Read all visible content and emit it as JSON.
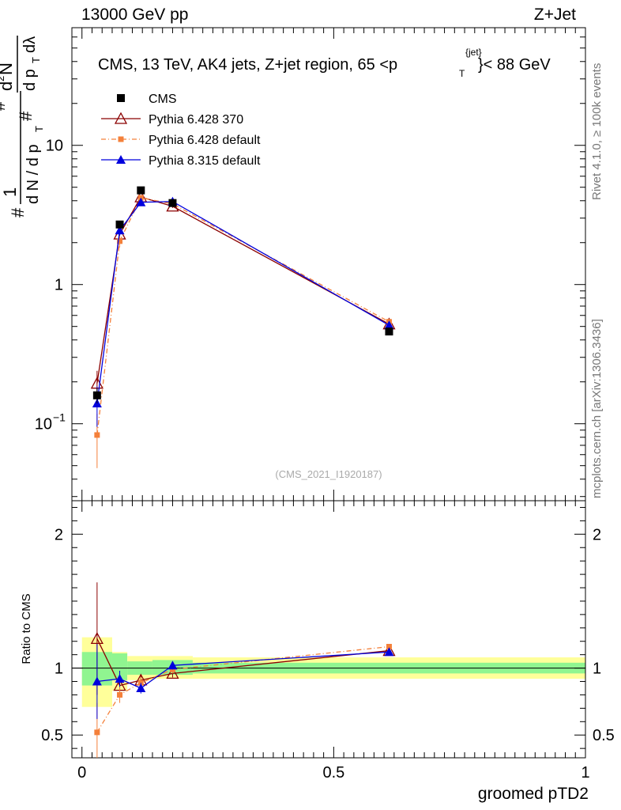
{
  "header": {
    "energy": "13000 GeV pp",
    "process": "Z+Jet",
    "side_label": "Rivet 4.1.0, ≥ 100k events",
    "side_url": "mcplots.cern.ch [arXiv:1306.3436]",
    "analysis_id": "(CMS_2021_I1920187)",
    "xlabel": "groomed pTD2",
    "ratio_ylabel": "Ratio to CMS",
    "title_prefix": "CMS, 13 TeV, AK4 jets, Z+jet region, 65 <p",
    "title_sup": "{jet}",
    "title_sub": "T",
    "title_suffix": "}< 88 GeV",
    "ylabel_top_1": "1",
    "ylabel_top_hash": "#",
    "ylabel_top_dN": "d N / d p",
    "ylabel_top_T": "T",
    "ylabel_top_num": "d",
    "ylabel_top_sup2": "2",
    "ylabel_top_N": "N",
    "ylabel_top_den": "d p",
    "ylabel_top_dlam": "dλ"
  },
  "colors": {
    "cms": "#000000",
    "p6_370": "#8b0000",
    "p6_def": "#f4803a",
    "p8_def": "#0000dd",
    "band_inner": "#90f590",
    "band_outer": "#ffff9a"
  },
  "chart_data": {
    "type": "line",
    "xlim": [
      -0.02,
      1.0
    ],
    "main_ylim_log": [
      0.028,
      70
    ],
    "ratio_ylim": [
      0.33,
      2.25
    ],
    "x_ticks": [
      {
        "value": 0,
        "label": "0"
      },
      {
        "value": 0.5,
        "label": "0.5"
      },
      {
        "value": 1,
        "label": "1"
      }
    ],
    "main_y_ticks": [
      {
        "value": 0.1,
        "label_base": "10",
        "label_exp": "−1"
      },
      {
        "value": 1,
        "label_base": "1",
        "label_exp": ""
      },
      {
        "value": 10,
        "label_base": "10",
        "label_exp": ""
      }
    ],
    "ratio_y_ticks": [
      {
        "value": 0.5,
        "label": "0.5"
      },
      {
        "value": 1,
        "label": "1"
      },
      {
        "value": 2,
        "label": "2"
      }
    ],
    "bins": [
      {
        "x_lo": 0.0,
        "x_hi": 0.06,
        "x": 0.03
      },
      {
        "x_lo": 0.06,
        "x_hi": 0.09,
        "x": 0.075
      },
      {
        "x_lo": 0.09,
        "x_hi": 0.14,
        "x": 0.117
      },
      {
        "x_lo": 0.14,
        "x_hi": 0.22,
        "x": 0.18
      },
      {
        "x_lo": 0.22,
        "x_hi": 1.0,
        "x": 0.61
      }
    ],
    "ratio_band": {
      "inner": [
        [
          0.87,
          1.12
        ],
        [
          0.91,
          1.11
        ],
        [
          0.95,
          1.05
        ],
        [
          0.95,
          1.06
        ],
        [
          0.96,
          1.04
        ]
      ],
      "outer": [
        [
          0.71,
          1.23
        ],
        [
          0.83,
          1.12
        ],
        [
          0.91,
          1.09
        ],
        [
          0.92,
          1.09
        ],
        [
          0.92,
          1.08
        ]
      ]
    },
    "series": [
      {
        "name": "CMS",
        "key": "cms",
        "marker": "square",
        "line": "none",
        "x": [
          0.03,
          0.075,
          0.117,
          0.18,
          0.61
        ],
        "y": [
          0.16,
          2.7,
          4.75,
          3.85,
          0.46
        ],
        "y_err": [
          0.02,
          0.15,
          0.2,
          0.15,
          0.02
        ]
      },
      {
        "name": "Pythia 6.428 370",
        "key": "p6_370",
        "marker": "triangle-open",
        "line": "solid",
        "x": [
          0.03,
          0.075,
          0.117,
          0.18,
          0.61
        ],
        "y": [
          0.195,
          2.3,
          4.25,
          3.65,
          0.52
        ],
        "y_err": [
          0.045,
          0.2,
          0.15,
          0.1,
          0.02
        ],
        "ratio": [
          1.22,
          0.87,
          0.91,
          0.96,
          1.13
        ],
        "ratio_err": [
          0.42,
          0.07,
          0.04,
          0.03,
          0.02
        ]
      },
      {
        "name": "Pythia 6.428 default",
        "key": "p6_def",
        "marker": "square-small",
        "line": "dashdot",
        "x": [
          0.03,
          0.075,
          0.117,
          0.18,
          0.61
        ],
        "y": [
          0.083,
          2.05,
          4.2,
          3.8,
          0.54
        ],
        "y_err": [
          0.035,
          0.2,
          0.15,
          0.1,
          0.02
        ],
        "ratio": [
          0.52,
          0.8,
          0.89,
          0.99,
          1.16
        ],
        "ratio_err": [
          0.22,
          0.06,
          0.04,
          0.03,
          0.02
        ]
      },
      {
        "name": "Pythia 8.315 default",
        "key": "p8_def",
        "marker": "triangle",
        "line": "solid",
        "x": [
          0.03,
          0.075,
          0.117,
          0.18,
          0.61
        ],
        "y": [
          0.14,
          2.45,
          3.9,
          3.95,
          0.51
        ],
        "y_err": [
          0.045,
          0.2,
          0.15,
          0.1,
          0.02
        ],
        "ratio": [
          0.9,
          0.92,
          0.85,
          1.02,
          1.12
        ],
        "ratio_err": [
          0.28,
          0.06,
          0.04,
          0.03,
          0.02
        ]
      }
    ]
  }
}
